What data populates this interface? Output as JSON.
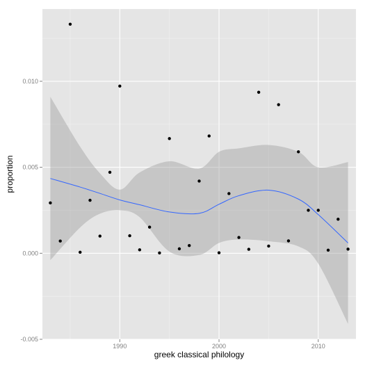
{
  "chart_data": {
    "type": "scatter",
    "xlabel": "greek classical philology",
    "ylabel": "proportion",
    "xlim": [
      1982.2,
      2013.8
    ],
    "ylim": [
      -0.005,
      0.0142
    ],
    "x_ticks": [
      1990,
      2000,
      2010
    ],
    "x_tick_labels": [
      "1990",
      "2000",
      "2010"
    ],
    "y_ticks": [
      -0.005,
      0.0,
      0.005,
      0.01
    ],
    "y_tick_labels": [
      "-0.005",
      "0.000",
      "0.005",
      "0.010"
    ],
    "grid": true,
    "points": [
      {
        "x": 1983,
        "y": 0.00293
      },
      {
        "x": 1984,
        "y": 0.00071
      },
      {
        "x": 1985,
        "y": 0.01332
      },
      {
        "x": 1986,
        "y": 6e-05
      },
      {
        "x": 1987,
        "y": 0.00308
      },
      {
        "x": 1988,
        "y": 0.001
      },
      {
        "x": 1989,
        "y": 0.00471
      },
      {
        "x": 1990,
        "y": 0.00972
      },
      {
        "x": 1991,
        "y": 0.00102
      },
      {
        "x": 1992,
        "y": 0.0002
      },
      {
        "x": 1993,
        "y": 0.00152
      },
      {
        "x": 1994,
        "y": 2e-05
      },
      {
        "x": 1995,
        "y": 0.00667
      },
      {
        "x": 1996,
        "y": 0.00026
      },
      {
        "x": 1997,
        "y": 0.00045
      },
      {
        "x": 1998,
        "y": 0.0042
      },
      {
        "x": 1999,
        "y": 0.00682
      },
      {
        "x": 2000,
        "y": 3e-05
      },
      {
        "x": 2001,
        "y": 0.00347
      },
      {
        "x": 2002,
        "y": 0.00092
      },
      {
        "x": 2003,
        "y": 0.00023
      },
      {
        "x": 2004,
        "y": 0.00936
      },
      {
        "x": 2005,
        "y": 0.00042
      },
      {
        "x": 2006,
        "y": 0.00864
      },
      {
        "x": 2007,
        "y": 0.00072
      },
      {
        "x": 2008,
        "y": 0.0059
      },
      {
        "x": 2009,
        "y": 0.0025
      },
      {
        "x": 2010,
        "y": 0.0025
      },
      {
        "x": 2011,
        "y": 0.00018
      },
      {
        "x": 2012,
        "y": 0.00198
      },
      {
        "x": 2013,
        "y": 0.00024
      }
    ],
    "smooth": {
      "x": [
        1983,
        1986,
        1988,
        1990,
        1992,
        1995,
        1998,
        2000,
        2002,
        2005,
        2008,
        2010,
        2013
      ],
      "y": [
        0.00435,
        0.00385,
        0.00348,
        0.0031,
        0.00282,
        0.0024,
        0.00232,
        0.00285,
        0.00335,
        0.00367,
        0.00315,
        0.00225,
        0.0006
      ],
      "lower": [
        -0.0004,
        0.0015,
        0.0023,
        0.0025,
        0.0021,
        0.0001,
        -0.0001,
        0.0006,
        0.0008,
        0.0007,
        0.0004,
        -0.0006,
        -0.0041
      ],
      "upper": [
        0.0091,
        0.0062,
        0.00465,
        0.0037,
        0.0047,
        0.00535,
        0.00492,
        0.0059,
        0.0061,
        0.0063,
        0.0059,
        0.005,
        0.0053
      ]
    },
    "colors": {
      "panel": "#e5e5e5",
      "grid_major": "#ffffff",
      "grid_minor": "#f2f2f2",
      "point": "#000000",
      "smooth_line": "#3366ff",
      "ribbon": "#999999"
    }
  }
}
